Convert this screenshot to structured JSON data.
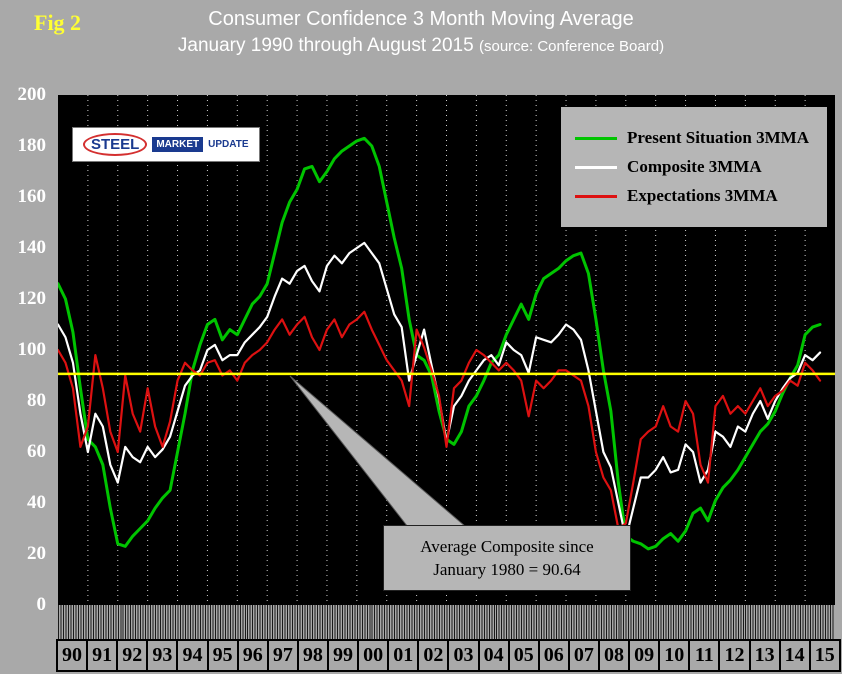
{
  "fig_label": "Fig 2",
  "title": {
    "line1": "Consumer Confidence 3 Month Moving Average",
    "line2": "January 1990 through August 2015",
    "source": "(source: Conference Board)"
  },
  "logo": {
    "steel": "STEEL",
    "market": "MARKET",
    "update": "UPDATE"
  },
  "legend": [
    {
      "label": "Present Situation 3MMA",
      "color": "#00c400"
    },
    {
      "label": "Composite 3MMA",
      "color": "#ffffff"
    },
    {
      "label": "Expectations 3MMA",
      "color": "#dd1111"
    }
  ],
  "callout": {
    "line1": "Average Composite since",
    "line2": "January 1980 = 90.64"
  },
  "axes": {
    "y_ticks": [
      200,
      180,
      160,
      140,
      120,
      100,
      80,
      60,
      40,
      20,
      0
    ],
    "x_ticks": [
      "90",
      "91",
      "92",
      "93",
      "94",
      "95",
      "96",
      "97",
      "98",
      "99",
      "00",
      "01",
      "02",
      "03",
      "04",
      "05",
      "06",
      "07",
      "08",
      "09",
      "10",
      "11",
      "12",
      "13",
      "14",
      "15"
    ]
  },
  "chart_data": {
    "type": "line",
    "title": "Consumer Confidence 3 Month Moving Average",
    "xlabel": "Year",
    "ylabel": "Index",
    "ylim": [
      0,
      200
    ],
    "x_start": 1990,
    "x_step": 0.25,
    "x_years_shown": 26,
    "grid": "vertical-dotted-yearly",
    "legend_position": "top-right",
    "avg_line": {
      "value": 90.64,
      "color": "#ffff00",
      "label": "Average Composite since January 1980 = 90.64"
    },
    "series": [
      {
        "name": "Present Situation 3MMA",
        "color": "#00c400",
        "values": [
          126,
          120,
          107,
          85,
          65,
          62,
          55,
          38,
          24,
          23,
          27,
          30,
          33,
          38,
          42,
          45,
          60,
          75,
          92,
          102,
          110,
          112,
          104,
          108,
          106,
          112,
          118,
          121,
          126,
          138,
          150,
          158,
          163,
          171,
          172,
          166,
          170,
          175,
          178,
          180,
          182,
          183,
          180,
          172,
          158,
          144,
          132,
          112,
          98,
          96,
          90,
          76,
          65,
          63,
          68,
          78,
          82,
          88,
          95,
          98,
          106,
          112,
          118,
          112,
          122,
          128,
          130,
          132,
          135,
          137,
          138,
          130,
          112,
          92,
          76,
          48,
          27,
          25,
          24,
          22,
          23,
          26,
          28,
          25,
          29,
          36,
          38,
          33,
          41,
          46,
          49,
          53,
          58,
          63,
          68,
          71,
          76,
          83,
          89,
          94,
          106,
          109,
          110
        ]
      },
      {
        "name": "Composite 3MMA",
        "color": "#ffffff",
        "values": [
          110,
          105,
          95,
          75,
          60,
          75,
          70,
          55,
          48,
          62,
          58,
          56,
          62,
          58,
          61,
          66,
          76,
          86,
          90,
          92,
          100,
          102,
          96,
          98,
          98,
          103,
          106,
          109,
          113,
          121,
          128,
          126,
          131,
          133,
          127,
          123,
          133,
          137,
          134,
          138,
          140,
          142,
          138,
          134,
          124,
          114,
          109,
          88,
          98,
          108,
          94,
          81,
          64,
          78,
          82,
          88,
          92,
          96,
          98,
          94,
          103,
          100,
          98,
          91,
          105,
          104,
          103,
          106,
          110,
          108,
          104,
          92,
          76,
          60,
          54,
          40,
          26,
          38,
          50,
          50,
          53,
          58,
          52,
          53,
          63,
          60,
          48,
          53,
          68,
          66,
          62,
          70,
          68,
          75,
          80,
          73,
          80,
          85,
          89,
          91,
          98,
          96,
          99
        ]
      },
      {
        "name": "Expectations 3MMA",
        "color": "#dd1111",
        "values": [
          100,
          95,
          85,
          62,
          70,
          98,
          85,
          68,
          60,
          90,
          75,
          68,
          85,
          70,
          62,
          72,
          88,
          95,
          92,
          90,
          95,
          96,
          90,
          92,
          88,
          95,
          98,
          100,
          103,
          108,
          112,
          106,
          110,
          113,
          105,
          100,
          108,
          112,
          105,
          110,
          112,
          115,
          108,
          102,
          96,
          92,
          88,
          78,
          108,
          101,
          92,
          82,
          62,
          85,
          88,
          95,
          100,
          98,
          95,
          92,
          95,
          92,
          88,
          74,
          88,
          85,
          88,
          92,
          92,
          90,
          88,
          78,
          60,
          50,
          45,
          30,
          32,
          48,
          65,
          68,
          70,
          78,
          70,
          68,
          80,
          75,
          55,
          48,
          78,
          82,
          75,
          78,
          75,
          80,
          85,
          78,
          82,
          84,
          88,
          86,
          95,
          92,
          88
        ]
      }
    ]
  }
}
